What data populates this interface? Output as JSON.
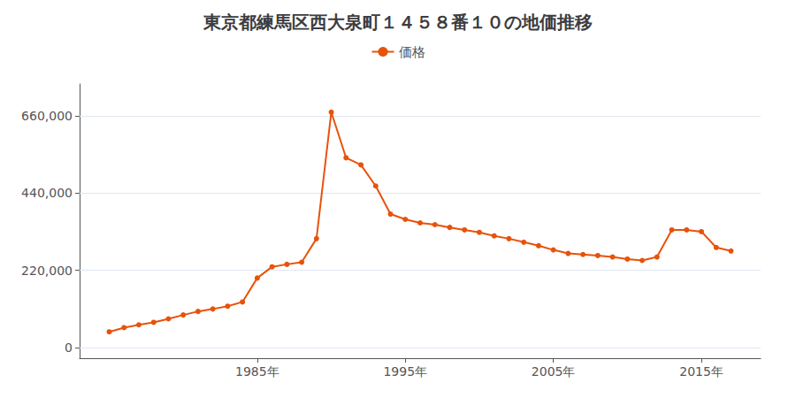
{
  "chart_data": {
    "type": "line",
    "title": "東京都練馬区西大泉町１４５８番１０の地価推移",
    "x": [
      1975,
      1976,
      1977,
      1978,
      1979,
      1980,
      1981,
      1982,
      1983,
      1984,
      1985,
      1986,
      1987,
      1988,
      1989,
      1990,
      1991,
      1992,
      1993,
      1994,
      1995,
      1996,
      1997,
      1998,
      1999,
      2000,
      2001,
      2002,
      2003,
      2004,
      2005,
      2006,
      2007,
      2008,
      2009,
      2010,
      2011,
      2012,
      2013,
      2014,
      2015,
      2016,
      2017
    ],
    "series": [
      {
        "name": "価格",
        "color": "#e8520a",
        "marker": "circle",
        "line_style": "solid",
        "values": [
          45000,
          57000,
          65000,
          72000,
          82000,
          93000,
          103000,
          110000,
          118000,
          130000,
          198000,
          230000,
          237000,
          243000,
          310000,
          670000,
          540000,
          520000,
          460000,
          380000,
          365000,
          355000,
          350000,
          342000,
          335000,
          328000,
          318000,
          310000,
          300000,
          290000,
          278000,
          268000,
          265000,
          262000,
          258000,
          252000,
          248000,
          258000,
          335000,
          335000,
          330000,
          285000,
          275000
        ]
      }
    ],
    "xlim": [
      1973,
      2019
    ],
    "xticks": [
      {
        "value": 1985,
        "label": "1985年"
      },
      {
        "value": 1995,
        "label": "1995年"
      },
      {
        "value": 2005,
        "label": "2005年"
      },
      {
        "value": 2015,
        "label": "2015年"
      }
    ],
    "ylim": [
      -30000,
      750000
    ],
    "yticks": [
      0,
      {
        "value": 220000,
        "label": "220,000"
      },
      {
        "value": 440000,
        "label": "440,000"
      },
      {
        "value": 660000,
        "label": "660,000"
      }
    ],
    "grid": true,
    "legend": "top"
  }
}
